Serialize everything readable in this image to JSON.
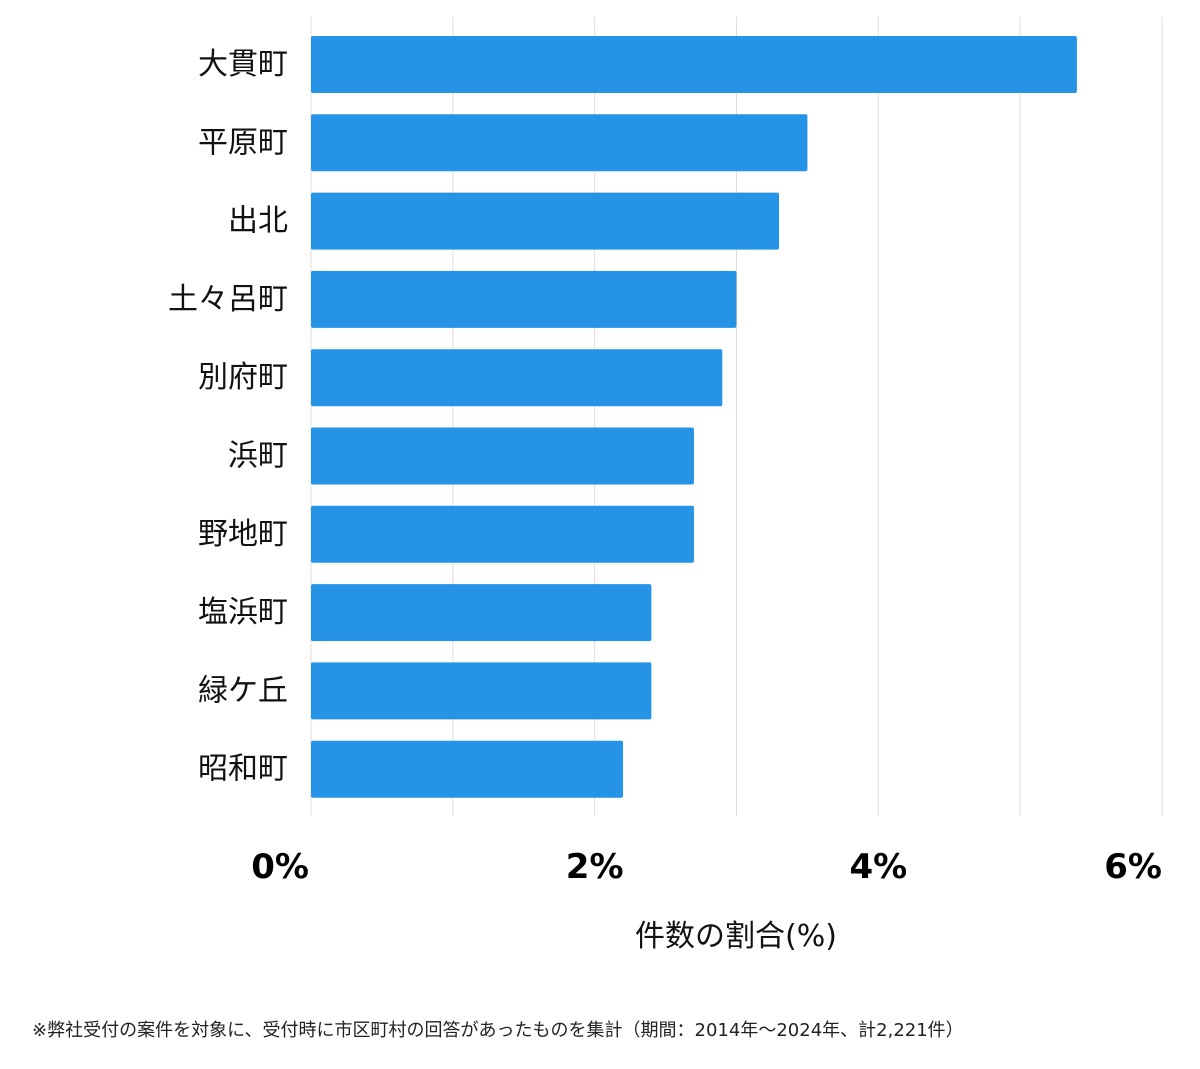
{
  "chart_data": {
    "type": "bar",
    "orientation": "horizontal",
    "categories": [
      "大貫町",
      "平原町",
      "出北",
      "土々呂町",
      "別府町",
      "浜町",
      "野地町",
      "塩浜町",
      "緑ケ丘",
      "昭和町"
    ],
    "values": [
      5.4,
      3.5,
      3.3,
      3.0,
      2.9,
      2.7,
      2.7,
      2.4,
      2.4,
      2.2
    ],
    "xlabel": "件数の割合(%)",
    "ylabel": "",
    "xlim": [
      0,
      6
    ],
    "xticks": [
      0,
      2,
      4,
      6
    ],
    "xtick_labels": [
      "0%",
      "2%",
      "4%",
      "6%"
    ],
    "grid": "vertical",
    "bar_color": "#2593e6"
  },
  "footnote": "※弊社受付の案件を対象に、受付時に市区町村の回答があったものを集計（期間：2014年〜2024年、計2,221件）"
}
